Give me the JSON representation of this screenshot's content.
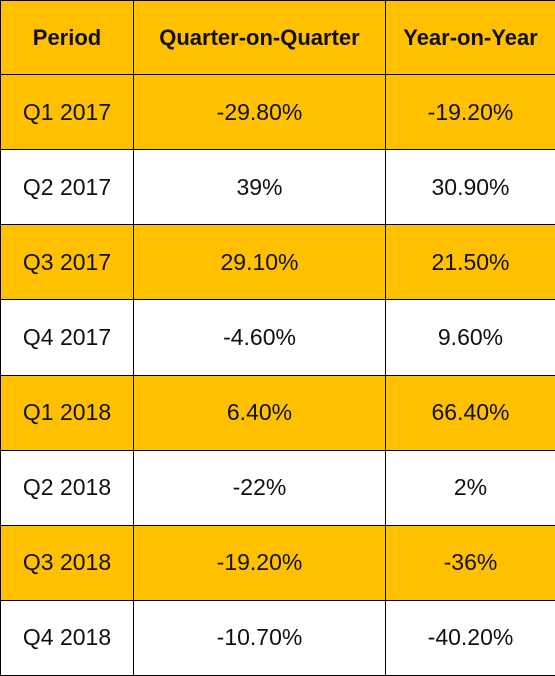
{
  "chart_data": {
    "type": "table",
    "columns": [
      "Period",
      "Quarter-on-Quarter",
      "Year-on-Year"
    ],
    "rows": [
      {
        "period": "Q1 2017",
        "qoq": "-29.80%",
        "yoy": "-19.20%"
      },
      {
        "period": "Q2 2017",
        "qoq": "39%",
        "yoy": "30.90%"
      },
      {
        "period": "Q3 2017",
        "qoq": "29.10%",
        "yoy": "21.50%"
      },
      {
        "period": "Q4 2017",
        "qoq": "-4.60%",
        "yoy": "9.60%"
      },
      {
        "period": "Q1 2018",
        "qoq": "6.40%",
        "yoy": "66.40%"
      },
      {
        "period": "Q2 2018",
        "qoq": "-22%",
        "yoy": "2%"
      },
      {
        "period": "Q3 2018",
        "qoq": "-19.20%",
        "yoy": "-36%"
      },
      {
        "period": "Q4 2018",
        "qoq": "-10.70%",
        "yoy": "-40.20%"
      }
    ]
  },
  "colors": {
    "highlight": "#ffc000",
    "plain": "#ffffff",
    "border": "#000000"
  }
}
